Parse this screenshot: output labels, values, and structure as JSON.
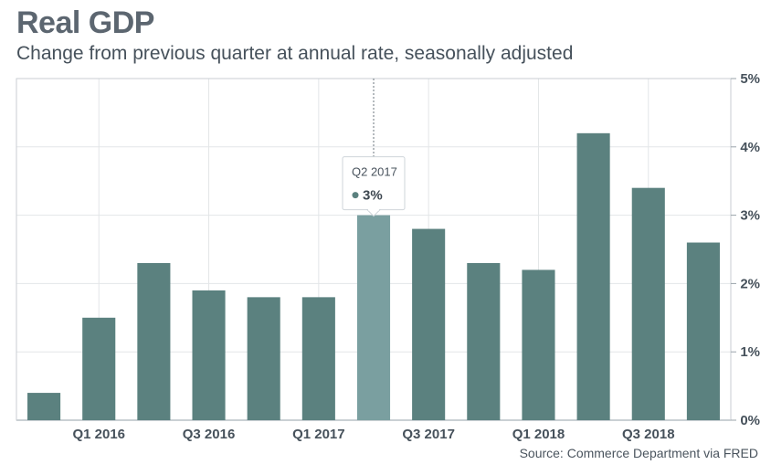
{
  "chart_data": {
    "type": "bar",
    "title": "Real GDP",
    "subtitle": "Change from previous quarter at annual rate, seasonally adjusted",
    "categories": [
      "Q4 2015",
      "Q1 2016",
      "Q2 2016",
      "Q3 2016",
      "Q4 2016",
      "Q1 2017",
      "Q2 2017",
      "Q3 2017",
      "Q4 2017",
      "Q1 2018",
      "Q2 2018",
      "Q3 2018",
      "Q4 2018"
    ],
    "values": [
      0.4,
      1.5,
      2.3,
      1.9,
      1.8,
      1.8,
      3.0,
      2.8,
      2.3,
      2.2,
      4.2,
      3.4,
      2.6
    ],
    "xtick_labels": [
      "Q1 2016",
      "Q3 2016",
      "Q1 2017",
      "Q3 2017",
      "Q1 2018",
      "Q3 2018"
    ],
    "ytick_labels": [
      "0%",
      "1%",
      "2%",
      "3%",
      "4%",
      "5%"
    ],
    "ylim": [
      0,
      5
    ],
    "yaxis_position": "right",
    "grid": true,
    "highlighted_category": "Q2 2017",
    "tooltip": {
      "category": "Q2 2017",
      "value_label": "3%"
    },
    "colors": {
      "bar": "#5b817f",
      "bar_highlight": "#7a9fa0",
      "grid": "#e3e6e8",
      "axis": "#9aa3aa"
    },
    "source": "Source: Commerce Department via FRED"
  }
}
